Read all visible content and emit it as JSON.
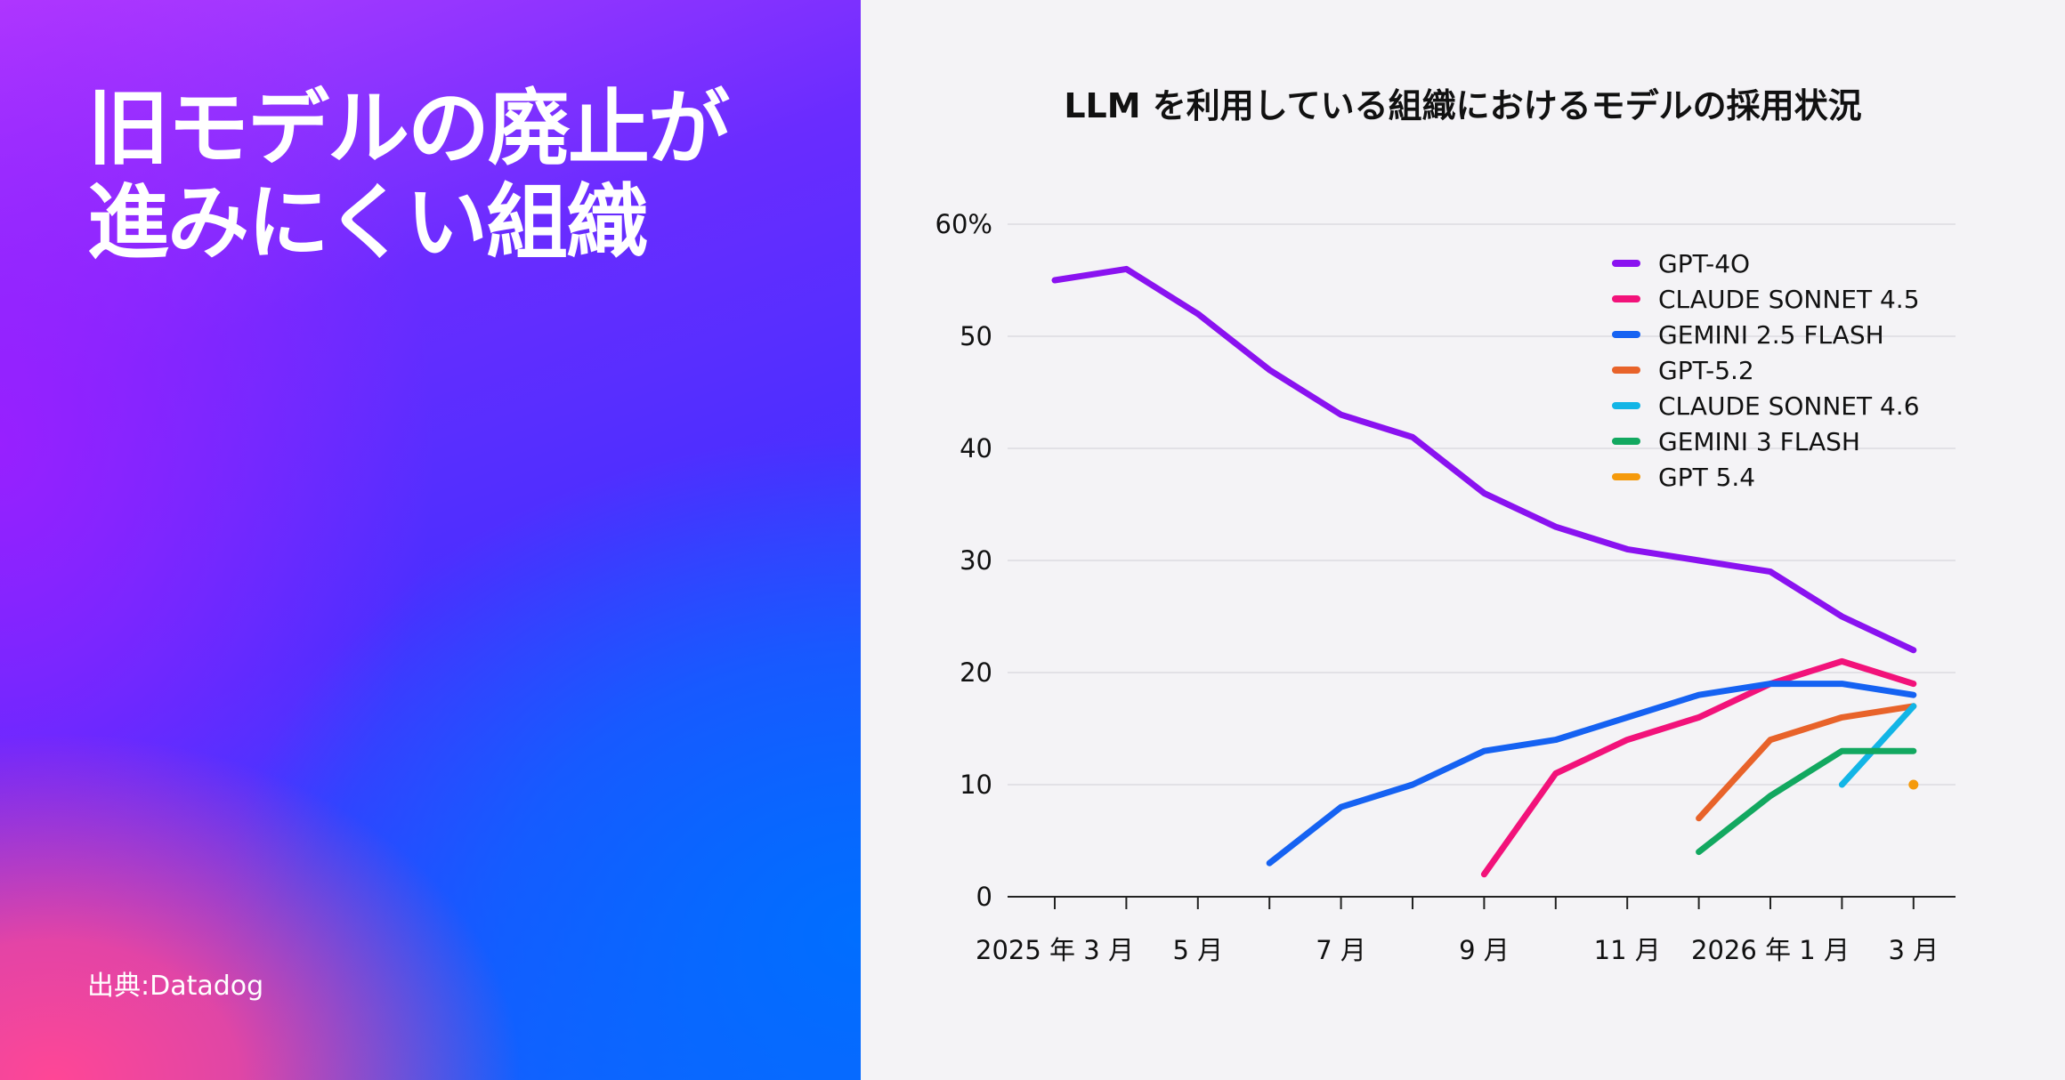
{
  "left": {
    "title_lines": [
      "旧モデルの廃止が",
      "進みにくい組織"
    ],
    "source": "出典:Datadog"
  },
  "chart_data": {
    "type": "line",
    "title": "LLM を利用している組織におけるモデルの採用状況",
    "x_labels": [
      "2025 年 3 月",
      "",
      "5 月",
      "",
      "7 月",
      "",
      "9 月",
      "",
      "11 月",
      "",
      "2026 年 1 月",
      "",
      "3 月"
    ],
    "ylim": [
      0,
      60
    ],
    "y_ticks": [
      {
        "value": 0,
        "label": "0"
      },
      {
        "value": 10,
        "label": "10"
      },
      {
        "value": 20,
        "label": "20"
      },
      {
        "value": 30,
        "label": "30"
      },
      {
        "value": 40,
        "label": "40"
      },
      {
        "value": 50,
        "label": "50"
      },
      {
        "value": 60,
        "label": "60%"
      }
    ],
    "grid": true,
    "legend_position": "top-right",
    "series": [
      {
        "name": "GPT-4O",
        "color": "#8a12f0",
        "values": [
          55,
          56,
          52,
          47,
          43,
          41,
          36,
          33,
          31,
          30,
          29,
          25,
          22
        ]
      },
      {
        "name": "CLAUDE SONNET 4.5",
        "color": "#f2127a",
        "values": [
          null,
          null,
          null,
          null,
          null,
          null,
          2,
          11,
          14,
          16,
          19,
          21,
          19
        ]
      },
      {
        "name": "GEMINI 2.5 FLASH",
        "color": "#1562f2",
        "values": [
          null,
          null,
          null,
          3,
          8,
          10,
          13,
          14,
          16,
          18,
          19,
          19,
          18
        ]
      },
      {
        "name": "GPT-5.2",
        "color": "#e8632a",
        "values": [
          null,
          null,
          null,
          null,
          null,
          null,
          null,
          null,
          null,
          7,
          14,
          16,
          17
        ]
      },
      {
        "name": "CLAUDE SONNET 4.6",
        "color": "#12b5e6",
        "values": [
          null,
          null,
          null,
          null,
          null,
          null,
          null,
          null,
          null,
          null,
          null,
          10,
          17
        ]
      },
      {
        "name": "GEMINI 3 FLASH",
        "color": "#12a860",
        "values": [
          null,
          null,
          null,
          null,
          null,
          null,
          null,
          null,
          null,
          4,
          9,
          13,
          13
        ]
      },
      {
        "name": "GPT 5.4",
        "color": "#f59a0c",
        "values": [
          null,
          null,
          null,
          null,
          null,
          null,
          null,
          null,
          null,
          null,
          null,
          null,
          10
        ]
      }
    ]
  }
}
